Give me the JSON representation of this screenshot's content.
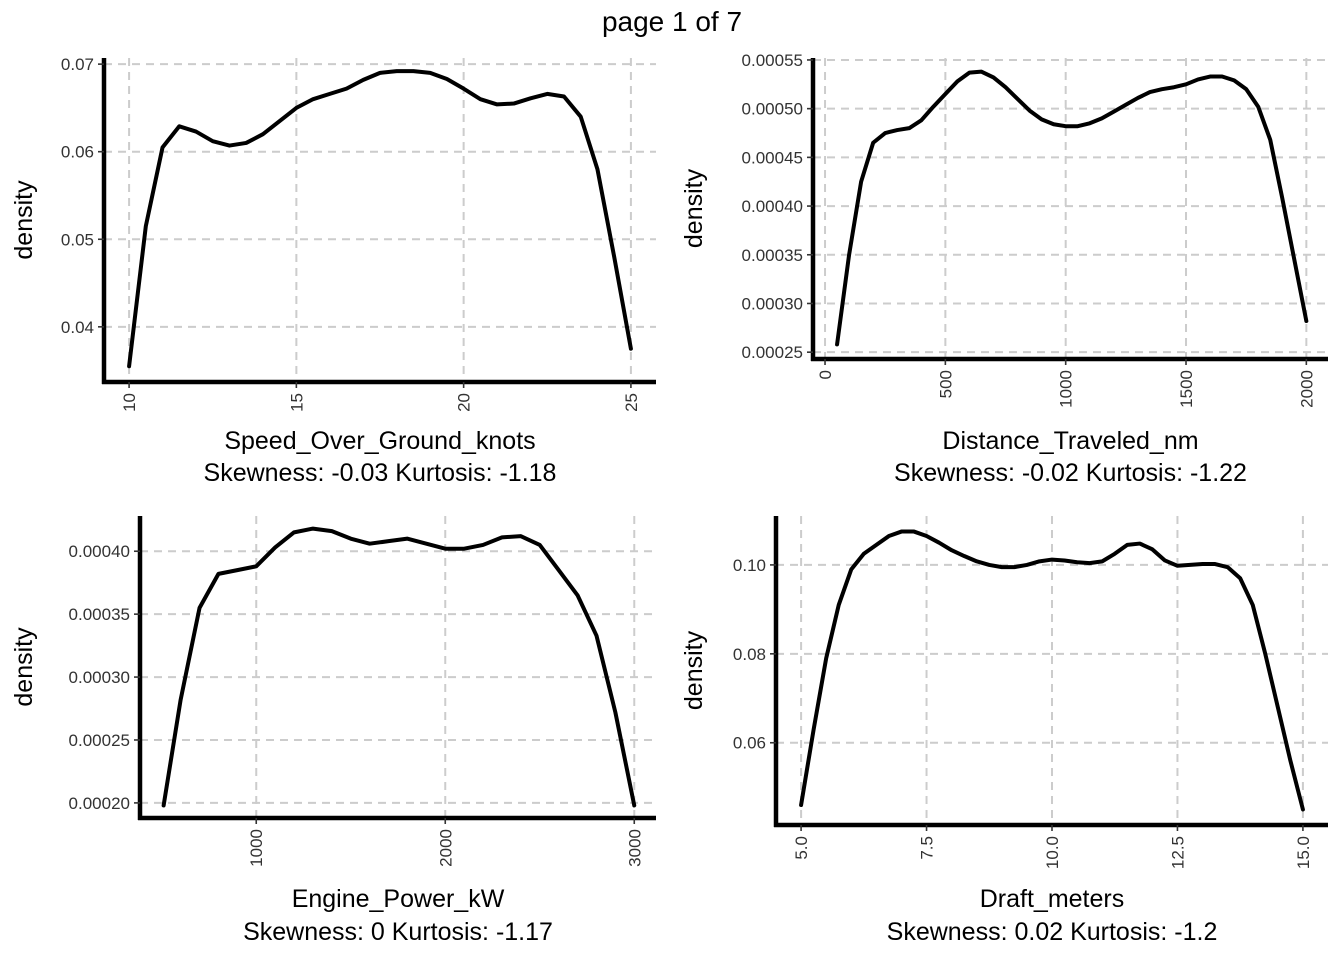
{
  "page_label": "page 1 of 7",
  "chart_data": [
    {
      "type": "line",
      "xlabel": "Speed_Over_Ground_knots",
      "stats_label": "Skewness: -0.03 Kurtosis: -1.18",
      "ylabel": "density",
      "xlim": [
        9.25,
        25.75
      ],
      "ylim": [
        0.0337,
        0.0707
      ],
      "xticks": [
        10,
        15,
        20,
        25
      ],
      "xtick_labels": [
        "10",
        "15",
        "20",
        "25"
      ],
      "yticks": [
        0.04,
        0.05,
        0.06,
        0.07
      ],
      "ytick_labels": [
        "0.04",
        "0.05",
        "0.06",
        "0.07"
      ],
      "grid": true,
      "series": [
        {
          "x": [
            10.0,
            10.5,
            11.0,
            11.5,
            12.0,
            12.5,
            13.0,
            13.5,
            14.0,
            14.5,
            15.0,
            15.5,
            16.0,
            16.5,
            17.0,
            17.5,
            18.0,
            18.5,
            19.0,
            19.5,
            20.0,
            20.5,
            21.0,
            21.5,
            22.0,
            22.5,
            23.0,
            23.5,
            24.0,
            24.5,
            25.0
          ],
          "y": [
            0.0355,
            0.0515,
            0.0605,
            0.0629,
            0.0623,
            0.0612,
            0.0607,
            0.061,
            0.062,
            0.0635,
            0.065,
            0.066,
            0.0666,
            0.0672,
            0.0682,
            0.069,
            0.0692,
            0.0692,
            0.069,
            0.0683,
            0.0672,
            0.066,
            0.0654,
            0.0655,
            0.0661,
            0.0666,
            0.0663,
            0.064,
            0.058,
            0.048,
            0.0375
          ]
        }
      ]
    },
    {
      "type": "line",
      "xlabel": "Distance_Traveled_nm",
      "stats_label": "Skewness: -0.02 Kurtosis: -1.22",
      "ylabel": "density",
      "xlim": [
        -50,
        2090
      ],
      "ylim": [
        0.000243,
        0.000552
      ],
      "xticks": [
        0,
        500,
        1000,
        1500,
        2000
      ],
      "xtick_labels": [
        "0",
        "500",
        "1000",
        "1500",
        "2000"
      ],
      "yticks": [
        0.00025,
        0.0003,
        0.00035,
        0.0004,
        0.00045,
        0.0005,
        0.00055
      ],
      "ytick_labels": [
        "0.00025",
        "0.00030",
        "0.00035",
        "0.00040",
        "0.00045",
        "0.00050",
        "0.00055"
      ],
      "grid": true,
      "series": [
        {
          "x": [
            50,
            100,
            150,
            200,
            250,
            300,
            350,
            400,
            450,
            500,
            550,
            600,
            650,
            700,
            750,
            800,
            850,
            900,
            950,
            1000,
            1050,
            1100,
            1150,
            1200,
            1250,
            1300,
            1350,
            1400,
            1450,
            1500,
            1550,
            1600,
            1650,
            1700,
            1750,
            1800,
            1850,
            1900,
            1950,
            2000
          ],
          "y": [
            0.000258,
            0.00035,
            0.000425,
            0.000465,
            0.000475,
            0.000478,
            0.00048,
            0.000488,
            0.000502,
            0.000515,
            0.000528,
            0.000537,
            0.000538,
            0.000532,
            0.000522,
            0.00051,
            0.000498,
            0.000489,
            0.000484,
            0.000482,
            0.000482,
            0.000485,
            0.00049,
            0.000497,
            0.000504,
            0.000511,
            0.000517,
            0.00052,
            0.000522,
            0.000525,
            0.00053,
            0.000533,
            0.000533,
            0.000529,
            0.00052,
            0.000502,
            0.000468,
            0.000408,
            0.000345,
            0.000282
          ]
        }
      ]
    },
    {
      "type": "line",
      "xlabel": "Engine_Power_kW",
      "stats_label": "Skewness: 0 Kurtosis: -1.17",
      "ylabel": "density",
      "xlim": [
        385,
        3115
      ],
      "ylim": [
        0.000188,
        0.000428
      ],
      "xticks": [
        1000,
        2000,
        3000
      ],
      "xtick_labels": [
        "1000",
        "2000",
        "3000"
      ],
      "yticks": [
        0.0002,
        0.00025,
        0.0003,
        0.00035,
        0.0004
      ],
      "ytick_labels": [
        "0.00020",
        "0.00025",
        "0.00030",
        "0.00035",
        "0.00040"
      ],
      "grid": true,
      "series": [
        {
          "x": [
            510,
            600,
            700,
            800,
            900,
            1000,
            1100,
            1200,
            1300,
            1400,
            1500,
            1600,
            1700,
            1800,
            1900,
            2000,
            2100,
            2200,
            2300,
            2400,
            2500,
            2600,
            2700,
            2800,
            2900,
            3000
          ],
          "y": [
            0.000198,
            0.000282,
            0.000355,
            0.000382,
            0.000385,
            0.000388,
            0.000403,
            0.000415,
            0.000418,
            0.000416,
            0.00041,
            0.000406,
            0.000408,
            0.00041,
            0.000406,
            0.000402,
            0.000402,
            0.000405,
            0.000411,
            0.000412,
            0.000405,
            0.000385,
            0.000365,
            0.000333,
            0.000272,
            0.000198
          ]
        }
      ]
    },
    {
      "type": "line",
      "xlabel": "Draft_meters",
      "stats_label": "Skewness: 0.02 Kurtosis: -1.2",
      "ylabel": "density",
      "xlim": [
        4.5,
        15.5
      ],
      "ylim": [
        0.0415,
        0.111
      ],
      "xticks": [
        5.0,
        7.5,
        10.0,
        12.5,
        15.0
      ],
      "xtick_labels": [
        "5.0",
        "7.5",
        "10.0",
        "12.5",
        "15.0"
      ],
      "yticks": [
        0.06,
        0.08,
        0.1
      ],
      "ytick_labels": [
        "0.06",
        "0.08",
        "0.10"
      ],
      "grid": true,
      "series": [
        {
          "x": [
            5.0,
            5.25,
            5.5,
            5.75,
            6.0,
            6.25,
            6.5,
            6.75,
            7.0,
            7.25,
            7.5,
            7.75,
            8.0,
            8.25,
            8.5,
            8.75,
            9.0,
            9.25,
            9.5,
            9.75,
            10.0,
            10.25,
            10.5,
            10.75,
            11.0,
            11.25,
            11.5,
            11.75,
            12.0,
            12.25,
            12.5,
            12.75,
            13.0,
            13.25,
            13.5,
            13.75,
            14.0,
            14.25,
            14.5,
            14.75,
            15.0
          ],
          "y": [
            0.046,
            0.063,
            0.079,
            0.091,
            0.099,
            0.1025,
            0.1045,
            0.1065,
            0.1075,
            0.1075,
            0.1065,
            0.105,
            0.1033,
            0.102,
            0.1008,
            0.1,
            0.0995,
            0.0995,
            0.1,
            0.1008,
            0.1012,
            0.101,
            0.1006,
            0.1004,
            0.1008,
            0.1025,
            0.1045,
            0.1048,
            0.1035,
            0.101,
            0.0998,
            0.1,
            0.1002,
            0.1002,
            0.0995,
            0.097,
            0.091,
            0.08,
            0.068,
            0.056,
            0.045
          ]
        }
      ]
    }
  ]
}
